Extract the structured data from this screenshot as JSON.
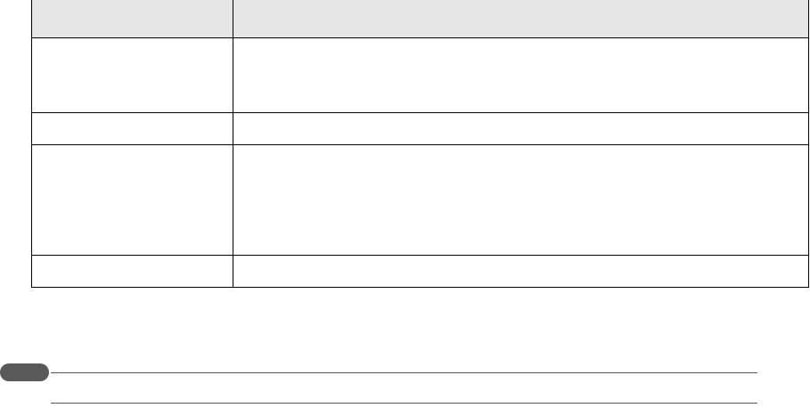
{
  "table": {
    "header": [
      "",
      ""
    ],
    "rows": [
      [
        "",
        ""
      ],
      [
        "",
        ""
      ],
      [
        "",
        ""
      ],
      [
        "",
        ""
      ]
    ]
  },
  "section_badge": {
    "label": ""
  },
  "colors": {
    "header_bg": "#e6e6e6",
    "border": "#000000",
    "badge": "#595959",
    "rule": "#595959"
  }
}
